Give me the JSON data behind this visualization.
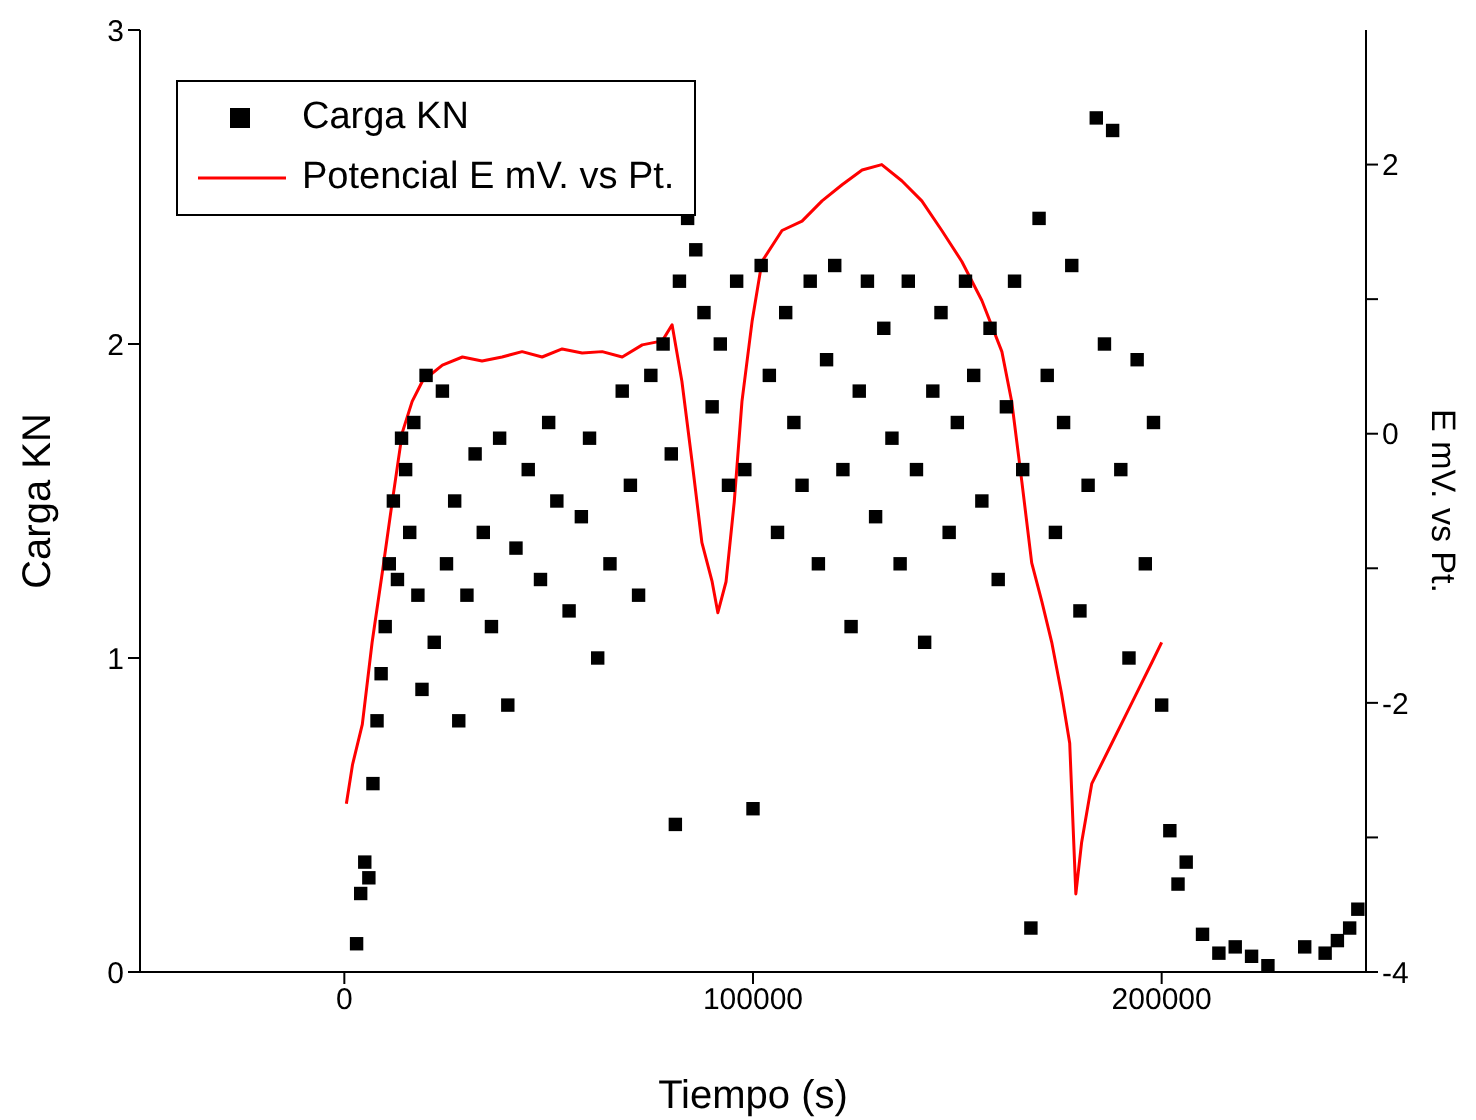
{
  "chart_data": {
    "type": "scatter",
    "xlabel": "Tiempo (s)",
    "ylabel": "Carga KN",
    "y2label": "E mV. vs Pt.",
    "xlim": [
      -50000,
      250000
    ],
    "xticks": [
      0,
      100000,
      200000
    ],
    "ylim": [
      0,
      3
    ],
    "yticks": [
      0,
      1,
      2,
      3
    ],
    "y2lim": [
      -4,
      3
    ],
    "y2ticks": [
      -4,
      {
        "value": -3,
        "label": null
      },
      -2,
      {
        "value": -1,
        "label": null
      },
      0,
      {
        "value": 1,
        "label": null
      },
      2
    ],
    "legend": "top left",
    "grid": false,
    "series": [
      {
        "name": "Carga KN",
        "marker": "square",
        "color": "#000000",
        "x": [
          3000,
          4000,
          5000,
          6000,
          7000,
          8000,
          9000,
          10000,
          11000,
          12000,
          13000,
          14000,
          15000,
          16000,
          17000,
          18000,
          19000,
          20000,
          22000,
          24000,
          25000,
          27000,
          28000,
          30000,
          32000,
          34000,
          36000,
          38000,
          40000,
          42000,
          45000,
          48000,
          50000,
          52000,
          55000,
          58000,
          60000,
          62000,
          65000,
          68000,
          70000,
          72000,
          75000,
          78000,
          80000,
          81000,
          82000,
          84000,
          86000,
          88000,
          90000,
          92000,
          94000,
          96000,
          98000,
          100000,
          102000,
          104000,
          106000,
          108000,
          110000,
          112000,
          114000,
          116000,
          118000,
          120000,
          122000,
          124000,
          126000,
          128000,
          130000,
          132000,
          134000,
          136000,
          138000,
          140000,
          142000,
          144000,
          146000,
          148000,
          150000,
          152000,
          154000,
          156000,
          158000,
          160000,
          162000,
          164000,
          166000,
          168000,
          170000,
          172000,
          174000,
          176000,
          178000,
          180000,
          182000,
          184000,
          186000,
          188000,
          190000,
          192000,
          194000,
          196000,
          198000,
          200000,
          202000,
          204000,
          206000,
          210000,
          214000,
          218000,
          222000,
          226000,
          235000,
          240000,
          243000,
          246000,
          248000
        ],
        "values": [
          0.09,
          0.25,
          0.35,
          0.3,
          0.6,
          0.8,
          0.95,
          1.1,
          1.3,
          1.5,
          1.25,
          1.7,
          1.6,
          1.4,
          1.75,
          1.2,
          0.9,
          1.9,
          1.05,
          1.85,
          1.3,
          1.5,
          0.8,
          1.2,
          1.65,
          1.4,
          1.1,
          1.7,
          0.85,
          1.35,
          1.6,
          1.25,
          1.75,
          1.5,
          1.15,
          1.45,
          1.7,
          1.0,
          1.3,
          1.85,
          1.55,
          1.2,
          1.9,
          2.0,
          1.65,
          0.47,
          2.2,
          2.4,
          2.3,
          2.1,
          1.8,
          2.0,
          1.55,
          2.2,
          1.6,
          0.52,
          2.25,
          1.9,
          1.4,
          2.1,
          1.75,
          1.55,
          2.2,
          1.3,
          1.95,
          2.25,
          1.6,
          1.1,
          1.85,
          2.2,
          1.45,
          2.05,
          1.7,
          1.3,
          2.2,
          1.6,
          1.05,
          1.85,
          2.1,
          1.4,
          1.75,
          2.2,
          1.9,
          1.5,
          2.05,
          1.25,
          1.8,
          2.2,
          1.6,
          0.14,
          2.4,
          1.9,
          1.4,
          1.75,
          2.25,
          1.15,
          1.55,
          2.72,
          2.0,
          2.68,
          1.6,
          1.0,
          1.95,
          1.3,
          1.75,
          0.85,
          0.45,
          0.28,
          0.35,
          0.12,
          0.06,
          0.08,
          0.05,
          0.02,
          0.08,
          0.06,
          0.1,
          0.14,
          0.2
        ]
      },
      {
        "name": "Potencial E mV. vs Pt.",
        "type": "line",
        "axis": "y2",
        "marker": "none",
        "line_style": "solid",
        "color": "#ff0000",
        "x": [
          500,
          2000,
          4400,
          6800,
          9300,
          11700,
          14200,
          16600,
          19100,
          24000,
          28900,
          33700,
          38600,
          43500,
          48400,
          53300,
          58200,
          63100,
          68000,
          72900,
          77800,
          80200,
          82600,
          85100,
          87500,
          90000,
          91400,
          93400,
          95400,
          97300,
          99800,
          102200,
          107100,
          112000,
          116900,
          121800,
          126700,
          131500,
          136400,
          141300,
          146200,
          151100,
          156000,
          160900,
          163300,
          165800,
          168200,
          170700,
          173100,
          175500,
          177500,
          179000,
          180400,
          182900,
          187800,
          192700,
          197600,
          200000
        ],
        "values": [
          -2.75,
          -2.46,
          -2.16,
          -1.55,
          -1.03,
          -0.51,
          0.01,
          0.24,
          0.39,
          0.51,
          0.57,
          0.54,
          0.57,
          0.61,
          0.57,
          0.63,
          0.6,
          0.61,
          0.57,
          0.66,
          0.69,
          0.81,
          0.39,
          -0.21,
          -0.81,
          -1.1,
          -1.33,
          -1.1,
          -0.51,
          0.24,
          0.84,
          1.28,
          1.51,
          1.58,
          1.73,
          1.85,
          1.96,
          2.0,
          1.88,
          1.73,
          1.51,
          1.28,
          0.99,
          0.61,
          0.24,
          -0.36,
          -0.96,
          -1.25,
          -1.55,
          -1.93,
          -2.3,
          -3.42,
          -3.04,
          -2.6,
          -2.3,
          -2.0,
          -1.7,
          -1.55
        ]
      }
    ]
  }
}
